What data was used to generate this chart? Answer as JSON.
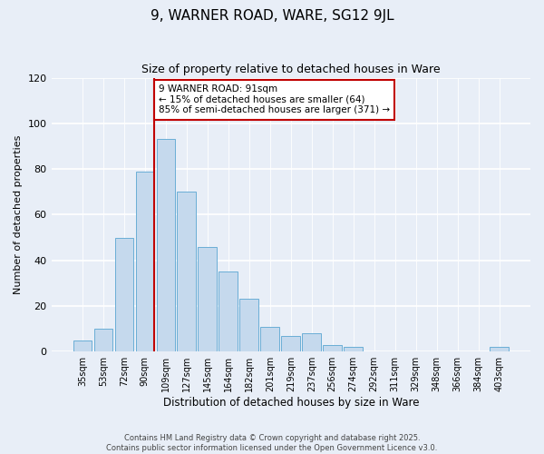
{
  "title": "9, WARNER ROAD, WARE, SG12 9JL",
  "subtitle": "Size of property relative to detached houses in Ware",
  "xlabel": "Distribution of detached houses by size in Ware",
  "ylabel": "Number of detached properties",
  "bar_labels": [
    "35sqm",
    "53sqm",
    "72sqm",
    "90sqm",
    "109sqm",
    "127sqm",
    "145sqm",
    "164sqm",
    "182sqm",
    "201sqm",
    "219sqm",
    "237sqm",
    "256sqm",
    "274sqm",
    "292sqm",
    "311sqm",
    "329sqm",
    "348sqm",
    "366sqm",
    "384sqm",
    "403sqm"
  ],
  "bar_values": [
    5,
    10,
    50,
    79,
    93,
    70,
    46,
    35,
    23,
    11,
    7,
    8,
    3,
    2,
    0,
    0,
    0,
    0,
    0,
    0,
    2
  ],
  "bar_color": "#c5d9ed",
  "bar_edge_color": "#6aaed6",
  "vline_x_index": 3,
  "vline_color": "#c00000",
  "ylim": [
    0,
    120
  ],
  "yticks": [
    0,
    20,
    40,
    60,
    80,
    100,
    120
  ],
  "annotation_title": "9 WARNER ROAD: 91sqm",
  "annotation_line1": "← 15% of detached houses are smaller (64)",
  "annotation_line2": "85% of semi-detached houses are larger (371) →",
  "annotation_box_color": "#ffffff",
  "annotation_box_edge_color": "#c00000",
  "footer1": "Contains HM Land Registry data © Crown copyright and database right 2025.",
  "footer2": "Contains public sector information licensed under the Open Government Licence v3.0.",
  "bg_color": "#e8eef7",
  "plot_bg_color": "#e8eef7",
  "grid_color": "#ffffff"
}
